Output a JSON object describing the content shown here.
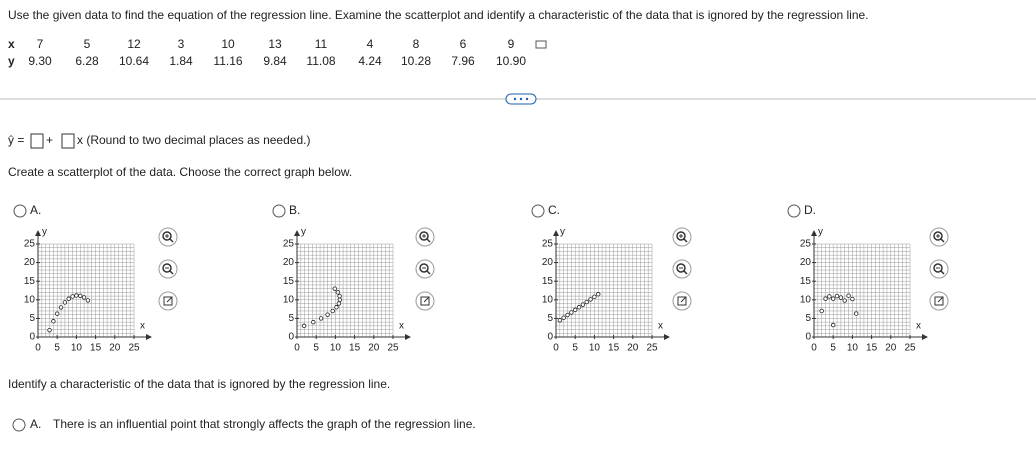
{
  "question": "Use the given data to find the equation of the regression line. Examine the scatterplot and identify a characteristic of the data that is ignored by the regression line.",
  "table": {
    "rows": [
      [
        "x",
        "7",
        "5",
        "12",
        "3",
        "10",
        "13",
        "11",
        "4",
        "8",
        "6",
        "9"
      ],
      [
        "y",
        "9.30",
        "6.28",
        "10.64",
        "1.84",
        "11.16",
        "9.84",
        "11.08",
        "4.24",
        "10.28",
        "7.96",
        "10.90"
      ]
    ]
  },
  "equation": {
    "lhs": "ŷ =",
    "plus": "+",
    "suffix": "x (Round to two decimal places as needed.)"
  },
  "prompt": "Create a scatterplot of the data. Choose the correct graph below.",
  "options": [
    {
      "label": "A.",
      "x_label": "x",
      "y_label": "y",
      "xlim": [
        0,
        25
      ],
      "ylim": [
        0,
        25
      ],
      "xticks": [
        0,
        5,
        10,
        15,
        20,
        25
      ],
      "yticks": [
        0,
        5,
        10,
        15,
        20,
        25
      ],
      "points": [
        [
          7,
          9.3
        ],
        [
          5,
          6.28
        ],
        [
          12,
          10.64
        ],
        [
          3,
          1.84
        ],
        [
          10,
          11.16
        ],
        [
          13,
          9.84
        ],
        [
          11,
          11.08
        ],
        [
          4,
          4.24
        ],
        [
          8,
          10.28
        ],
        [
          6,
          7.96
        ],
        [
          9,
          10.9
        ]
      ]
    },
    {
      "label": "B.",
      "x_label": "x",
      "y_label": "y",
      "xlim": [
        0,
        25
      ],
      "ylim": [
        0,
        25
      ],
      "xticks": [
        0,
        5,
        10,
        15,
        20,
        25
      ],
      "yticks": [
        0,
        5,
        10,
        15,
        20,
        25
      ],
      "points": [
        [
          9.3,
          7
        ],
        [
          6.28,
          5
        ],
        [
          10.64,
          12
        ],
        [
          1.84,
          3
        ],
        [
          11.16,
          10
        ],
        [
          9.84,
          13
        ],
        [
          11.08,
          11
        ],
        [
          4.24,
          4
        ],
        [
          10.28,
          8
        ],
        [
          7.96,
          6
        ],
        [
          10.9,
          9
        ]
      ]
    },
    {
      "label": "C.",
      "x_label": "x",
      "y_label": "y",
      "xlim": [
        0,
        25
      ],
      "ylim": [
        0,
        25
      ],
      "xticks": [
        0,
        5,
        10,
        15,
        20,
        25
      ],
      "yticks": [
        0,
        5,
        10,
        15,
        20,
        25
      ],
      "points": [
        [
          1,
          4.5
        ],
        [
          2,
          5.2
        ],
        [
          3,
          5.9
        ],
        [
          4,
          6.6
        ],
        [
          5,
          7.3
        ],
        [
          6,
          8
        ],
        [
          7,
          8.7
        ],
        [
          8,
          9.4
        ],
        [
          9,
          10.1
        ],
        [
          10,
          10.8
        ],
        [
          11,
          11.5
        ]
      ]
    },
    {
      "label": "D.",
      "x_label": "x",
      "y_label": "y",
      "xlim": [
        0,
        25
      ],
      "ylim": [
        0,
        25
      ],
      "xticks": [
        0,
        5,
        10,
        15,
        20,
        25
      ],
      "yticks": [
        0,
        5,
        10,
        15,
        20,
        25
      ],
      "points": [
        [
          3,
          10.3
        ],
        [
          4,
          10.9
        ],
        [
          5,
          10.3
        ],
        [
          6,
          11
        ],
        [
          7,
          10.6
        ],
        [
          8,
          9.8
        ],
        [
          9,
          11.1
        ],
        [
          10,
          10.2
        ],
        [
          2,
          7
        ],
        [
          11,
          6.3
        ],
        [
          5,
          3.2
        ]
      ]
    }
  ],
  "question2": "Identify a characteristic of the data that is ignored by the regression line.",
  "answer": {
    "label": "A.",
    "text": "There is an influential point that strongly affects the graph of the regression line."
  }
}
